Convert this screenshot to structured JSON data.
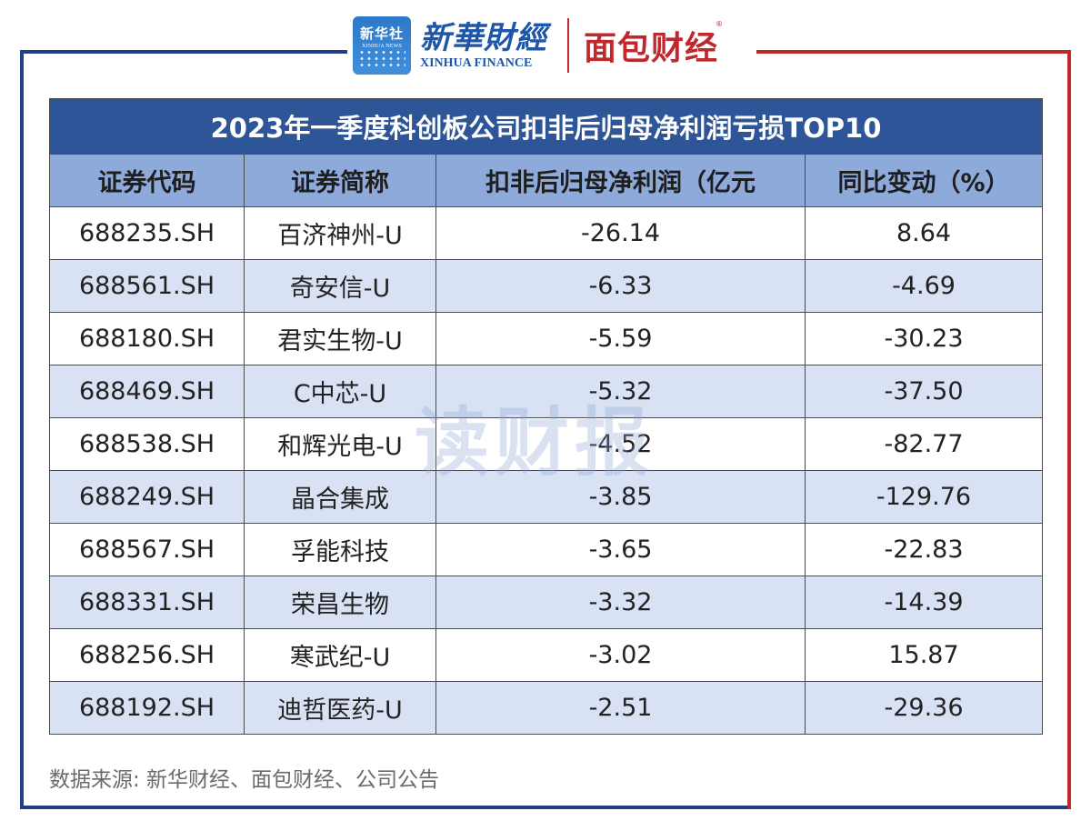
{
  "logos": {
    "xinhua_badge_cn": "新华社",
    "xinhua_badge_en": "XINHUA NEWS",
    "xinhua_finance_cn": "新華財經",
    "xinhua_finance_en": "XINHUA FINANCE",
    "mianbao_cn": "面包财经",
    "mianbao_reg": "®"
  },
  "table": {
    "title": "2023年一季度科创板公司扣非后归母净利润亏损TOP10",
    "headers": [
      "证券代码",
      "证券简称",
      "扣非后归母净利润（亿元",
      "同比变动（%）"
    ],
    "rows": [
      [
        "688235.SH",
        "百济神州-U",
        "-26.14",
        "8.64"
      ],
      [
        "688561.SH",
        "奇安信-U",
        "-6.33",
        "-4.69"
      ],
      [
        "688180.SH",
        "君实生物-U",
        "-5.59",
        "-30.23"
      ],
      [
        "688469.SH",
        "C中芯-U",
        "-5.32",
        "-37.50"
      ],
      [
        "688538.SH",
        "和辉光电-U",
        "-4.52",
        "-82.77"
      ],
      [
        "688249.SH",
        "晶合集成",
        "-3.85",
        "-129.76"
      ],
      [
        "688567.SH",
        "孚能科技",
        "-3.65",
        "-22.83"
      ],
      [
        "688331.SH",
        "荣昌生物",
        "-3.32",
        "-14.39"
      ],
      [
        "688256.SH",
        "寒武纪-U",
        "-3.02",
        "15.87"
      ],
      [
        "688192.SH",
        "迪哲医药-U",
        "-2.51",
        "-29.36"
      ]
    ]
  },
  "watermark": "读财报",
  "source": "数据来源: 新华财经、面包财经、公司公告",
  "colors": {
    "title_bg": "#2e5597",
    "header_bg": "#8eaadb",
    "stripe_bg": "#d9e2f5",
    "frame_blue": "#1f3f86",
    "frame_red": "#c0282e"
  }
}
